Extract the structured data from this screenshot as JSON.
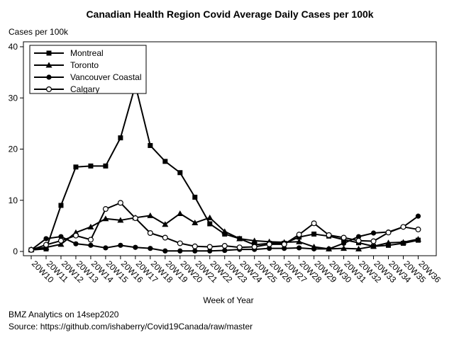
{
  "chart_data": {
    "type": "line",
    "title": "Canadian Health Region Covid Average Daily Cases per 100k",
    "ylabel": "Cases per 100k",
    "xlabel": "Week of Year",
    "ylim": [
      0,
      40
    ],
    "yticks": [
      0,
      10,
      20,
      30,
      40
    ],
    "grid": false,
    "legend_position": "top-left",
    "categories": [
      "20W10",
      "20W11",
      "20W12",
      "20W13",
      "20W14",
      "20W15",
      "20W16",
      "20W17",
      "20W18",
      "20W19",
      "20W20",
      "20W21",
      "20W22",
      "20W23",
      "20W24",
      "20W25",
      "20W26",
      "20W27",
      "20W28",
      "20W29",
      "20W30",
      "20W31",
      "20W32",
      "20W33",
      "20W34",
      "20W35",
      "20W36"
    ],
    "series": [
      {
        "name": "Montreal",
        "marker": "square",
        "values": [
          0.3,
          0.5,
          9.0,
          16.5,
          16.7,
          16.7,
          22.2,
          32.5,
          20.7,
          17.6,
          15.4,
          10.6,
          5.4,
          3.4,
          2.5,
          1.3,
          1.6,
          1.6,
          2.8,
          3.4,
          3.0,
          2.3,
          1.7,
          1.0,
          1.2,
          1.6,
          2.2
        ]
      },
      {
        "name": "Toronto",
        "marker": "triangle",
        "values": [
          0.4,
          0.8,
          1.4,
          3.7,
          4.8,
          6.4,
          6.1,
          6.6,
          7.0,
          5.3,
          7.4,
          5.6,
          6.6,
          3.9,
          2.5,
          2.1,
          1.9,
          1.8,
          1.9,
          0.9,
          0.5,
          0.6,
          0.5,
          1.0,
          1.7,
          1.8,
          2.4
        ]
      },
      {
        "name": "Vancouver Coastal",
        "marker": "circle-filled",
        "values": [
          0.3,
          2.5,
          2.9,
          1.5,
          1.2,
          0.7,
          1.2,
          0.8,
          0.6,
          0.1,
          0.1,
          0.1,
          0.1,
          0.2,
          0.4,
          0.4,
          0.6,
          0.6,
          0.7,
          0.5,
          0.5,
          1.6,
          2.9,
          3.6,
          3.8,
          4.8,
          6.9
        ]
      },
      {
        "name": "Calgary",
        "marker": "circle-open",
        "values": [
          0.3,
          1.3,
          2.1,
          3.1,
          2.3,
          8.3,
          9.5,
          6.5,
          3.6,
          2.7,
          1.6,
          1.0,
          0.9,
          1.1,
          0.8,
          0.9,
          1.4,
          1.4,
          3.3,
          5.5,
          3.2,
          2.7,
          2.1,
          2.0,
          3.7,
          4.8,
          4.3
        ]
      }
    ]
  },
  "footer": {
    "line1": "BMZ Analytics on 14sep2020",
    "line2": "Source: https://github.com/ishaberry/Covid19Canada/raw/master"
  }
}
